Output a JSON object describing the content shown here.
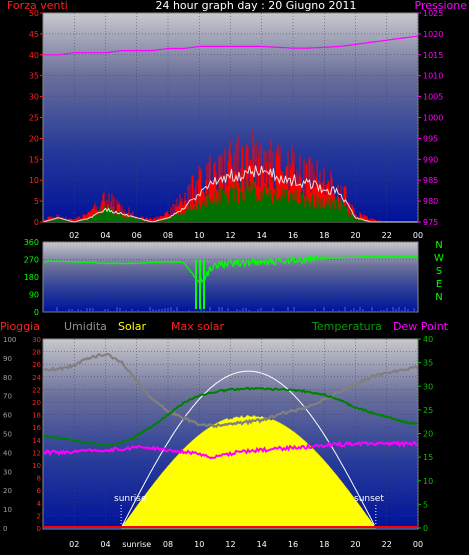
{
  "header": {
    "title": "24 hour graph day : 20 Giugno 2011",
    "wind_label": "Forza venti",
    "pressure_label": "Pressione"
  },
  "labels": {
    "pioggia": "Pioggia",
    "umidita": "Umidita",
    "solar": "Solar",
    "max_solar": "Max solar",
    "temperatura": "Temperatura",
    "dew_point": "Dew Point",
    "sunrise": "sunrise",
    "sunset": "sunset",
    "compass": [
      "N",
      "W",
      "S",
      "E",
      "N"
    ]
  },
  "colors": {
    "wind": "#ff0000",
    "gust": "#ffffff",
    "wind_avg": "#007000",
    "pressure": "#ff00ff",
    "direction": "#00ff00",
    "rain": "#ff0000",
    "humidity": "#808080",
    "solar": "#ffff00",
    "max_solar": "#ffffff",
    "temperature": "#008000",
    "dew_point": "#ff00ff"
  },
  "chart_data": [
    {
      "type": "line",
      "title": "24 hour graph day : 20 Giugno 2011",
      "x_ticks": [
        "02",
        "04",
        "06",
        "08",
        "10",
        "12",
        "14",
        "16",
        "18",
        "20",
        "22",
        "00"
      ],
      "y_left": {
        "label": "Forza venti",
        "ylim": [
          0,
          50
        ],
        "ticks": [
          0,
          5,
          10,
          15,
          20,
          25,
          30,
          35,
          40,
          45,
          50
        ]
      },
      "y_right": {
        "label": "Pressione",
        "ylim": [
          975,
          1025
        ],
        "ticks": [
          975,
          980,
          985,
          990,
          995,
          1000,
          1005,
          1010,
          1015,
          1020,
          1025
        ]
      },
      "wind_speed_peaks_hourly": [
        1,
        2,
        1,
        3,
        8,
        5,
        2,
        1,
        3,
        8,
        14,
        17,
        20,
        22,
        23,
        21,
        19,
        16,
        14,
        12,
        3,
        1,
        0,
        0,
        0
      ],
      "gust_hourly": [
        0,
        1,
        0,
        1,
        3,
        2,
        1,
        0,
        1,
        3,
        7,
        10,
        11,
        12,
        12,
        11,
        10,
        9,
        8,
        7,
        1,
        0,
        0,
        0,
        0
      ],
      "wind_avg_hourly": [
        0,
        1,
        0,
        1,
        4,
        2,
        1,
        0,
        1,
        3,
        5,
        7,
        8,
        9,
        9,
        8,
        7,
        6,
        6,
        5,
        1,
        0,
        0,
        0,
        0
      ],
      "pressure_hourly": [
        1015,
        1015,
        1015.5,
        1015.5,
        1015.5,
        1016,
        1016,
        1016,
        1016.5,
        1016.5,
        1017,
        1017,
        1017,
        1017,
        1017,
        1016.8,
        1016.6,
        1016.6,
        1016.8,
        1017,
        1017.5,
        1018,
        1018.5,
        1019,
        1019.5
      ]
    },
    {
      "type": "line",
      "x_ticks": [
        "02",
        "04",
        "06",
        "08",
        "10",
        "12",
        "14",
        "16",
        "18",
        "20",
        "22",
        "00"
      ],
      "y_left": {
        "ylim": [
          0,
          360
        ],
        "ticks": [
          0,
          90,
          180,
          270,
          360
        ]
      },
      "compass": [
        "N",
        "W",
        "S",
        "E",
        "N"
      ],
      "direction_hourly": [
        260,
        262,
        258,
        255,
        250,
        250,
        252,
        255,
        258,
        255,
        150,
        240,
        250,
        255,
        260,
        262,
        265,
        270,
        275,
        280,
        282,
        285,
        285,
        285,
        285
      ]
    },
    {
      "type": "area",
      "x_ticks": [
        "02",
        "04",
        "sunrise",
        "08",
        "10",
        "12",
        "14",
        "16",
        "18",
        "20",
        "22",
        "00"
      ],
      "y_left_outer": {
        "label": "Umidita",
        "ylim": [
          0,
          100
        ],
        "ticks": [
          0,
          10,
          20,
          30,
          40,
          50,
          60,
          70,
          80,
          90,
          100
        ]
      },
      "y_left_inner": {
        "label": "Pioggia",
        "ylim": [
          0,
          30
        ],
        "ticks": [
          0,
          2,
          4,
          6,
          8,
          10,
          12,
          14,
          16,
          18,
          20,
          22,
          24,
          26,
          28,
          30
        ]
      },
      "y_right": {
        "label": "Temperatura",
        "ylim": [
          0,
          40
        ],
        "ticks": [
          0,
          5,
          10,
          15,
          20,
          25,
          30,
          35,
          40
        ]
      },
      "sunrise_hour": 5.0,
      "sunset_hour": 21.3,
      "humidity_hourly": [
        84,
        84,
        86,
        90,
        92,
        88,
        78,
        68,
        62,
        58,
        55,
        54,
        55,
        56,
        57,
        60,
        62,
        64,
        68,
        72,
        76,
        80,
        82,
        84,
        85
      ],
      "solar_max_fraction": 0.6,
      "max_solar_peak_fraction": 0.83,
      "temperature_hourly": [
        19.5,
        19,
        18.5,
        18,
        17.5,
        18,
        19.5,
        21.5,
        24,
        26.5,
        28,
        28.8,
        29.3,
        29.5,
        29.5,
        29.3,
        29.2,
        28.8,
        28.2,
        27,
        25.5,
        24.5,
        23.5,
        22.5,
        22
      ],
      "dew_point_hourly": [
        16,
        16,
        16.2,
        16.5,
        16.5,
        16.8,
        17,
        17,
        16.5,
        16.2,
        15.5,
        15,
        15.8,
        16.2,
        16.5,
        16.8,
        17,
        17.2,
        17.5,
        17.7,
        17.8,
        17.8,
        17.8,
        17.8,
        17.9
      ],
      "rain_total": 0
    }
  ]
}
